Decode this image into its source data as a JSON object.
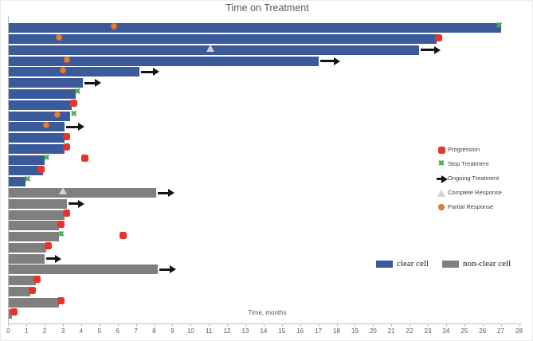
{
  "title": "Time on Treatment",
  "x_axis": {
    "label": "Time, months",
    "min": 0,
    "max": 28,
    "tick_labels": [
      0,
      1,
      2,
      3,
      4,
      5,
      6,
      7,
      8,
      9,
      10,
      11,
      12,
      13,
      14,
      15,
      16,
      17,
      18,
      19,
      20,
      21,
      22,
      23,
      24,
      25,
      26,
      27,
      28
    ]
  },
  "colors": {
    "clear_cell": "#3a5a9c",
    "non_clear_cell": "#7f7f7f",
    "progression": "#e6342b",
    "stop": "#45ad4d",
    "ongoing": "#141414",
    "complete_fill": "#d2d2d2",
    "complete_border": "#b5b5b5",
    "partial": "#ed7d31",
    "partial_border": "#d86a20",
    "axis": "#bfbfbf",
    "text": "#595959"
  },
  "marker_legend": [
    {
      "id": "progression",
      "label": "Progression"
    },
    {
      "id": "stop",
      "label": "Stop Treatment"
    },
    {
      "id": "ongoing",
      "label": "Ongoing Treatment"
    },
    {
      "id": "complete",
      "label": "Complete Response"
    },
    {
      "id": "partial",
      "label": "Partial Response"
    }
  ],
  "series_legend": [
    {
      "id": "clear_cell",
      "label": "clear cell"
    },
    {
      "id": "non_clear_cell",
      "label": "non-clear cell"
    }
  ],
  "chart_data": {
    "type": "bar",
    "subtype": "swimmer-plot",
    "orientation": "horizontal",
    "title": "Time on Treatment",
    "xlabel": "Time, months",
    "xlim": [
      0,
      28
    ],
    "grid": false,
    "patients": [
      {
        "group": "clear cell",
        "end": 27.0,
        "events": [
          {
            "type": "partial",
            "month": 5.8
          },
          {
            "type": "stop",
            "month": 26.9
          }
        ]
      },
      {
        "group": "clear cell",
        "end": 23.5,
        "events": [
          {
            "type": "partial",
            "month": 2.8
          },
          {
            "type": "progression",
            "month": 23.6
          }
        ]
      },
      {
        "group": "clear cell",
        "end": 22.5,
        "events": [
          {
            "type": "complete",
            "month": 11.1
          },
          {
            "type": "ongoing",
            "month": 23.7
          }
        ]
      },
      {
        "group": "clear cell",
        "end": 17.0,
        "events": [
          {
            "type": "partial",
            "month": 3.2
          },
          {
            "type": "ongoing",
            "month": 18.2
          }
        ]
      },
      {
        "group": "clear cell",
        "end": 7.2,
        "events": [
          {
            "type": "partial",
            "month": 3.0
          },
          {
            "type": "ongoing",
            "month": 8.3
          }
        ]
      },
      {
        "group": "clear cell",
        "end": 4.1,
        "events": [
          {
            "type": "ongoing",
            "month": 5.1
          }
        ]
      },
      {
        "group": "clear cell",
        "end": 3.7,
        "events": [
          {
            "type": "stop",
            "month": 3.8
          }
        ]
      },
      {
        "group": "clear cell",
        "end": 3.5,
        "events": [
          {
            "type": "progression",
            "month": 3.6
          }
        ]
      },
      {
        "group": "clear cell",
        "end": 3.4,
        "events": [
          {
            "type": "partial",
            "month": 2.7
          },
          {
            "type": "stop",
            "month": 3.6
          }
        ]
      },
      {
        "group": "clear cell",
        "end": 3.1,
        "events": [
          {
            "type": "partial",
            "month": 2.1
          },
          {
            "type": "ongoing",
            "month": 4.2
          }
        ]
      },
      {
        "group": "clear cell",
        "end": 3.1,
        "events": [
          {
            "type": "progression",
            "month": 3.2
          }
        ]
      },
      {
        "group": "clear cell",
        "end": 3.1,
        "events": [
          {
            "type": "progression",
            "month": 3.2
          }
        ]
      },
      {
        "group": "clear cell",
        "end": 2.0,
        "events": [
          {
            "type": "stop",
            "month": 2.1
          },
          {
            "type": "progression",
            "month": 4.2
          }
        ]
      },
      {
        "group": "clear cell",
        "end": 1.9,
        "events": [
          {
            "type": "progression",
            "month": 1.8
          }
        ]
      },
      {
        "group": "clear cell",
        "end": 0.95,
        "events": [
          {
            "type": "stop",
            "month": 1.05
          }
        ]
      },
      {
        "group": "non-clear cell",
        "end": 8.1,
        "events": [
          {
            "type": "complete",
            "month": 3.0
          },
          {
            "type": "ongoing",
            "month": 9.1
          }
        ]
      },
      {
        "group": "non-clear cell",
        "end": 3.2,
        "events": [
          {
            "type": "ongoing",
            "month": 4.2
          }
        ]
      },
      {
        "group": "non-clear cell",
        "end": 3.1,
        "events": [
          {
            "type": "progression",
            "month": 3.2
          }
        ]
      },
      {
        "group": "non-clear cell",
        "end": 2.8,
        "events": [
          {
            "type": "progression",
            "month": 2.9
          }
        ]
      },
      {
        "group": "non-clear cell",
        "end": 2.8,
        "events": [
          {
            "type": "stop",
            "month": 2.9
          },
          {
            "type": "progression",
            "month": 6.3
          }
        ]
      },
      {
        "group": "non-clear cell",
        "end": 2.1,
        "events": [
          {
            "type": "progression",
            "month": 2.2
          }
        ]
      },
      {
        "group": "non-clear cell",
        "end": 2.0,
        "events": [
          {
            "type": "ongoing",
            "month": 2.9
          }
        ]
      },
      {
        "group": "non-clear cell",
        "end": 8.2,
        "events": [
          {
            "type": "ongoing",
            "month": 9.2
          }
        ]
      },
      {
        "group": "non-clear cell",
        "end": 1.5,
        "events": [
          {
            "type": "progression",
            "month": 1.6
          }
        ]
      },
      {
        "group": "non-clear cell",
        "end": 1.2,
        "events": [
          {
            "type": "progression",
            "month": 1.3
          }
        ]
      },
      {
        "group": "non-clear cell",
        "end": 2.8,
        "events": [
          {
            "type": "progression",
            "month": 2.9
          }
        ]
      },
      {
        "group": "non-clear cell",
        "end": 0.2,
        "events": [
          {
            "type": "progression",
            "month": 0.3
          }
        ]
      }
    ]
  }
}
